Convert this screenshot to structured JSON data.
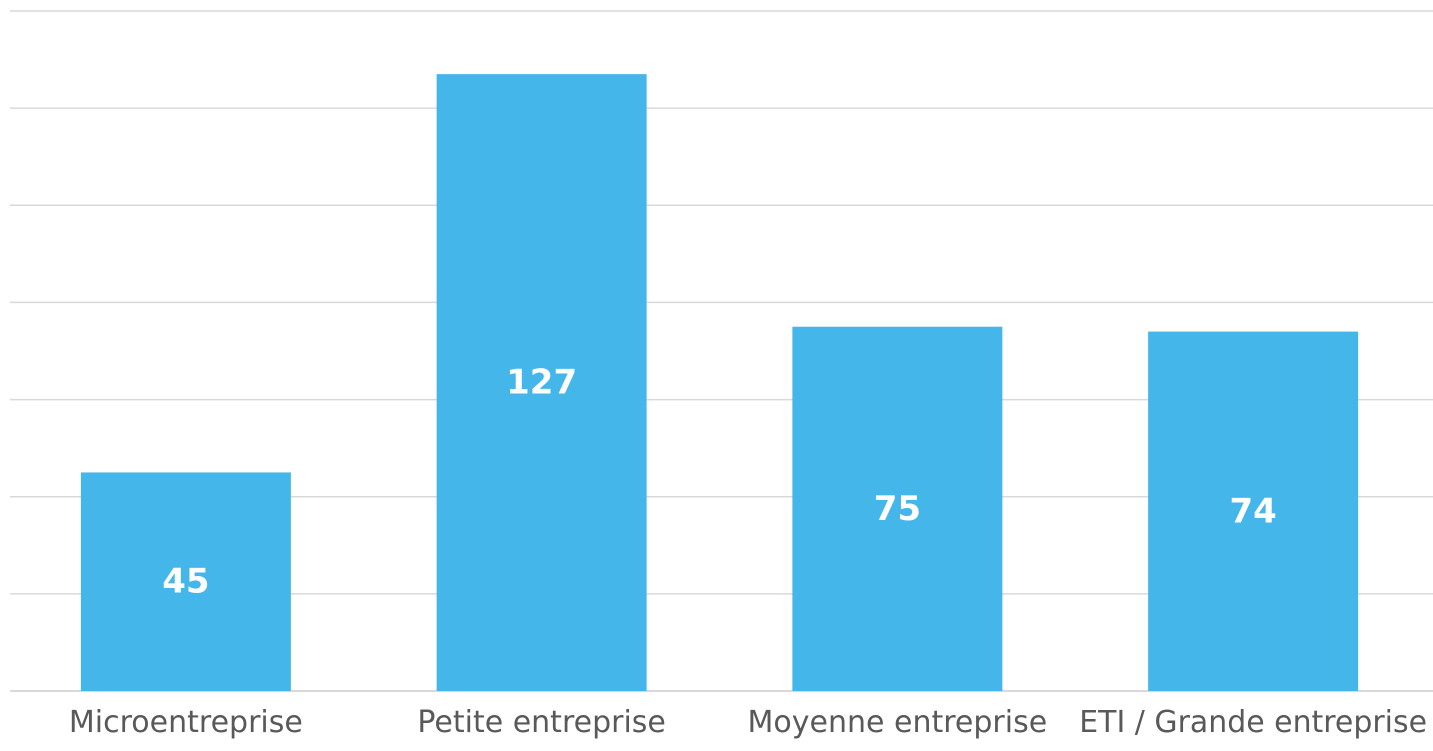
{
  "chart_data": {
    "type": "bar",
    "categories": [
      "Microentreprise",
      "Petite entreprise",
      "Moyenne entreprise",
      "ETI / Grande entreprise"
    ],
    "values": [
      45,
      127,
      75,
      74
    ],
    "title": "",
    "xlabel": "",
    "ylabel": "",
    "ylim": [
      0,
      140
    ],
    "grid": true,
    "gridline_step": 20,
    "show_y_tick_labels": false,
    "show_data_labels": true,
    "legend": "none",
    "colors": {
      "bar": "#44b6ea",
      "gridline": "#d9d9d9",
      "data_label": "#ffffff",
      "category_label": "#595959"
    }
  }
}
